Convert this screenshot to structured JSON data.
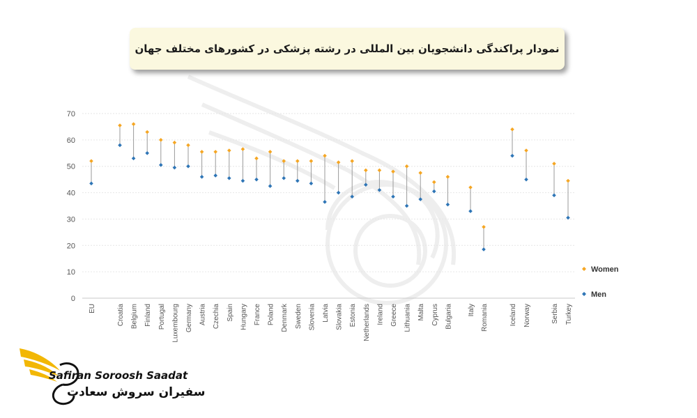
{
  "chart_data": {
    "type": "scatter",
    "title": "نمودار پراکندگی دانشجویان بین المللی در رشته پزشکی در کشورهای مختلف جهان",
    "categories": [
      "EU",
      "Croatia",
      "Belgium",
      "Finland",
      "Portugal",
      "Luxembourg",
      "Germany",
      "Austria",
      "Czechia",
      "Spain",
      "Hungary",
      "France",
      "Poland",
      "Denmark",
      "Sweden",
      "Slovenia",
      "Latvia",
      "Slovakia",
      "Estonia",
      "Netherlands",
      "Ireland",
      "Greece",
      "Lithuania",
      "Malta",
      "Cyprus",
      "Bulgaria",
      "Italy",
      "Romania",
      "Iceland",
      "Norway",
      "Serbia",
      "Turkey"
    ],
    "series": [
      {
        "name": "Women",
        "color": "#f5a623",
        "values": [
          52,
          65.5,
          66,
          63,
          60,
          59,
          58,
          55.5,
          55.5,
          56,
          56.5,
          53,
          55.5,
          52,
          52,
          52,
          54,
          51.5,
          52,
          48.5,
          48.5,
          48,
          50,
          47.5,
          44,
          46,
          42,
          27,
          64,
          56,
          51,
          44.5
        ]
      },
      {
        "name": "Men",
        "color": "#2e75b6",
        "values": [
          43.5,
          58,
          53,
          55,
          50.5,
          49.5,
          50,
          46,
          46.5,
          45.5,
          44.5,
          45,
          42.5,
          45.5,
          44.5,
          43.5,
          36.5,
          40,
          38.5,
          43,
          41,
          38.5,
          35,
          37.5,
          40.5,
          35.5,
          33,
          18.5,
          54,
          45,
          39,
          30.5
        ]
      }
    ],
    "yticks": [
      "0",
      "10",
      "20",
      "30",
      "40",
      "50",
      "60",
      "70"
    ],
    "ylim": [
      0,
      70
    ],
    "grid": true,
    "legend": "right"
  },
  "logo": {
    "text_en": "Safiran Soroosh Saadat",
    "text_fa": "سفیران سروش سعادت"
  }
}
